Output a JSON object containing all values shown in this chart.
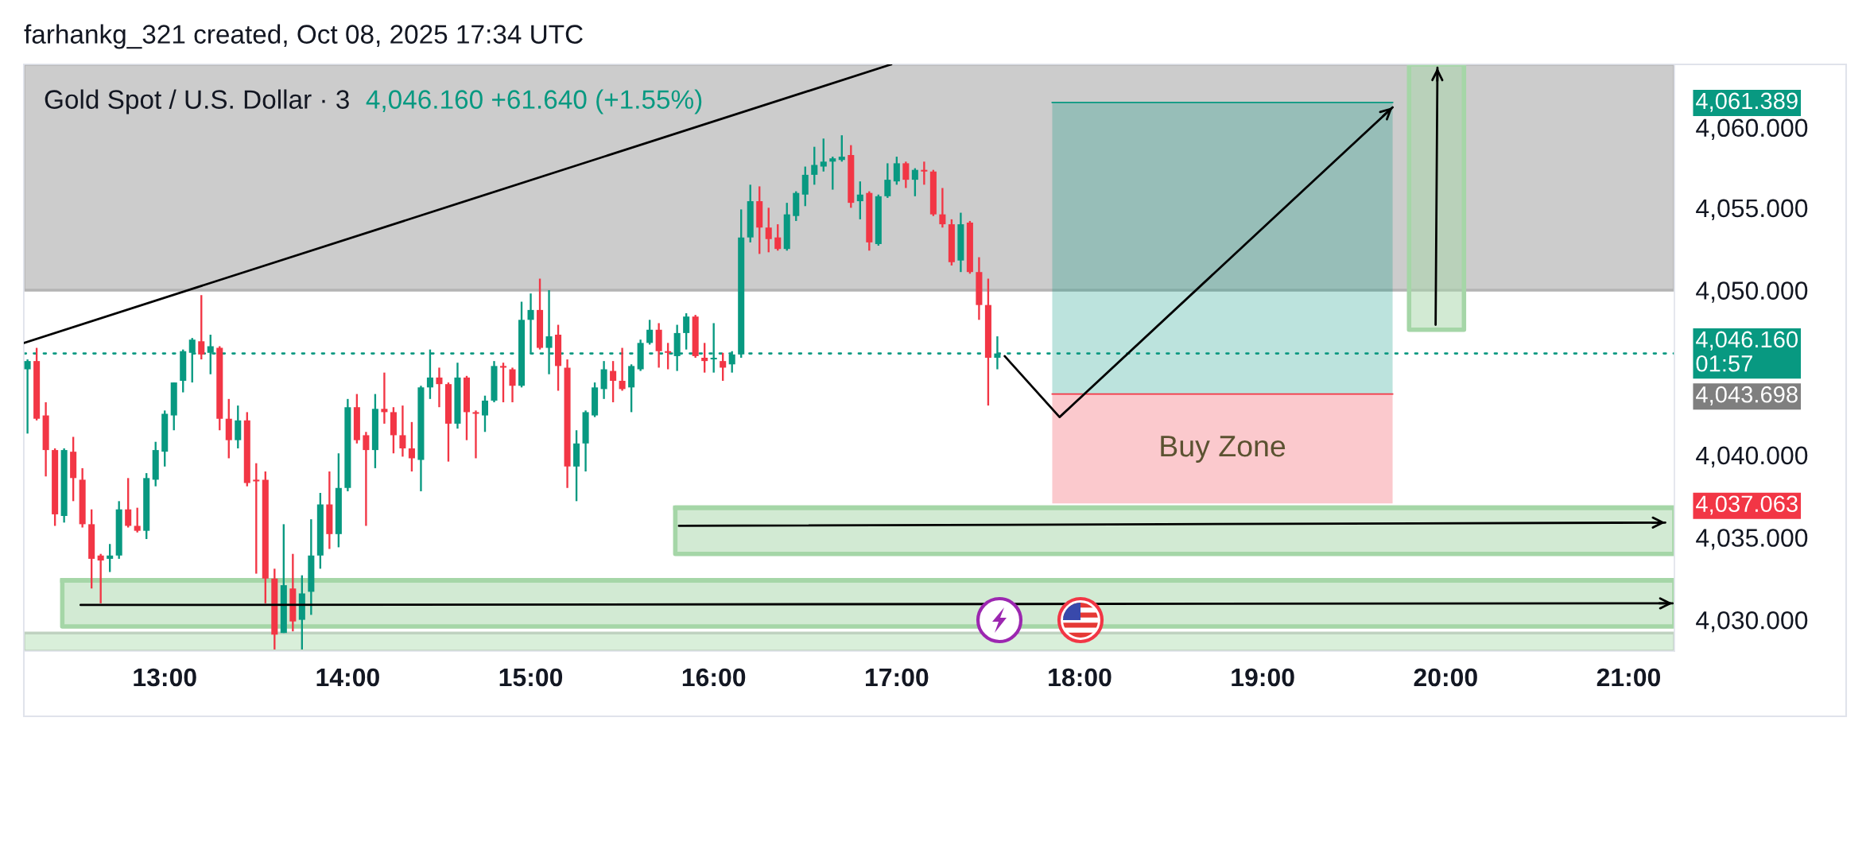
{
  "chart_data": {
    "type": "candlestick",
    "title": "farhankg_321 created, Oct 08, 2025 17:34 UTC",
    "subtitle": "Gold Spot / U.S. Dollar · 3",
    "annotations": [
      "4,046.160 +61.640 (+1.55%)"
    ],
    "x": [
      12.25,
      12.3,
      12.35,
      12.4,
      12.45,
      12.5,
      12.55,
      12.6,
      12.65,
      12.7,
      12.75,
      12.8,
      12.85,
      12.9,
      12.95,
      13,
      13.05,
      13.1,
      13.15,
      13.2,
      13.25,
      13.3,
      13.35,
      13.4,
      13.45,
      13.5,
      13.55,
      13.6,
      13.65,
      13.7,
      13.75,
      13.8,
      13.85,
      13.9,
      13.95,
      14,
      14.05,
      14.1,
      14.15,
      14.2,
      14.25,
      14.3,
      14.35,
      14.4,
      14.45,
      14.5,
      14.55,
      14.6,
      14.65,
      14.7,
      14.75,
      14.8,
      14.85,
      14.9,
      14.95,
      15,
      15.05,
      15.1,
      15.15,
      15.2,
      15.25,
      15.3,
      15.35,
      15.4,
      15.45,
      15.5,
      15.55,
      15.6,
      15.65,
      15.7,
      15.75,
      15.8,
      15.85,
      15.9,
      15.95,
      16,
      16.05,
      16.1,
      16.15,
      16.2,
      16.25,
      16.3,
      16.35,
      16.4,
      16.45,
      16.5,
      16.55,
      16.6,
      16.65,
      16.7,
      16.75,
      16.8,
      16.85,
      16.9,
      16.95,
      17,
      17.05,
      17.1,
      17.15,
      17.2,
      17.25,
      17.3,
      17.35,
      17.4,
      17.45,
      17.5,
      17.55
    ],
    "ohlc": [
      [
        4045.2,
        4045.8,
        4041.3,
        4045.7
      ],
      [
        4045.7,
        4046.5,
        4042.1,
        4042.2
      ],
      [
        4042.4,
        4043.2,
        4038.7,
        4040.3
      ],
      [
        4040.3,
        4040.4,
        4035.7,
        4036.4
      ],
      [
        4036.3,
        4040.4,
        4035.9,
        4040.3
      ],
      [
        4040.2,
        4041.1,
        4037.2,
        4038.6
      ],
      [
        4038.5,
        4039.2,
        4035.6,
        4035.8
      ],
      [
        4035.8,
        4036.7,
        4031.9,
        4033.7
      ],
      [
        4033.9,
        4034.0,
        4031.0,
        4033.6
      ],
      [
        4033.7,
        4034.6,
        4032.9,
        4033.9
      ],
      [
        4033.9,
        4037.2,
        4033.7,
        4036.7
      ],
      [
        4036.7,
        4038.6,
        4035.6,
        4035.7
      ],
      [
        4035.7,
        4036.8,
        4035.3,
        4035.4
      ],
      [
        4035.4,
        4038.9,
        4034.9,
        4038.6
      ],
      [
        4038.5,
        4040.8,
        4038.1,
        4040.3
      ],
      [
        4040.2,
        4042.7,
        4039.3,
        4042.5
      ],
      [
        4042.4,
        4044.4,
        4041.5,
        4044.4
      ],
      [
        4044.5,
        4046.4,
        4043.8,
        4046.3
      ],
      [
        4046.2,
        4047.1,
        4044.4,
        4047.0
      ],
      [
        4046.9,
        4049.7,
        4045.8,
        4046.1
      ],
      [
        4046.2,
        4047.3,
        4044.9,
        4046.6
      ],
      [
        4046.5,
        4046.6,
        4041.5,
        4042.2
      ],
      [
        4042.2,
        4043.4,
        4039.8,
        4040.9
      ],
      [
        4040.9,
        4043.0,
        4040.4,
        4042.1
      ],
      [
        4042.1,
        4042.6,
        4038.1,
        4038.3
      ],
      [
        4038.5,
        4039.5,
        4032.8,
        4038.4
      ],
      [
        4038.5,
        4039.0,
        4031.0,
        4032.5
      ],
      [
        4032.5,
        4033.1,
        4028.2,
        4029.1
      ],
      [
        4029.2,
        4035.8,
        4029.2,
        4032.1
      ],
      [
        4031.9,
        4034.0,
        4029.3,
        4029.9
      ],
      [
        4030.0,
        4032.7,
        4028.2,
        4031.6
      ],
      [
        4031.7,
        4036.1,
        4030.3,
        4033.9
      ],
      [
        4033.9,
        4037.7,
        4033.1,
        4037.0
      ],
      [
        4037.0,
        4039.0,
        4034.3,
        4035.2
      ],
      [
        4035.2,
        4040.1,
        4034.4,
        4038.0
      ],
      [
        4038.0,
        4043.4,
        4037.8,
        4042.9
      ],
      [
        4042.9,
        4043.7,
        4040.7,
        4040.9
      ],
      [
        4041.2,
        4041.4,
        4035.7,
        4040.3
      ],
      [
        4040.3,
        4043.7,
        4039.2,
        4042.8
      ],
      [
        4042.8,
        4045.0,
        4041.9,
        4042.6
      ],
      [
        4042.6,
        4042.9,
        4040.1,
        4041.2
      ],
      [
        4041.2,
        4043.0,
        4039.9,
        4040.4
      ],
      [
        4040.4,
        4042.0,
        4039.0,
        4039.8
      ],
      [
        4039.7,
        4044.2,
        4037.8,
        4044.1
      ],
      [
        4044.1,
        4046.4,
        4043.4,
        4044.7
      ],
      [
        4044.7,
        4045.3,
        4042.9,
        4044.3
      ],
      [
        4044.3,
        4044.4,
        4039.6,
        4041.9
      ],
      [
        4041.9,
        4045.6,
        4041.6,
        4044.7
      ],
      [
        4044.7,
        4044.8,
        4040.9,
        4042.6
      ],
      [
        4042.6,
        4042.7,
        4039.8,
        4042.5
      ],
      [
        4042.4,
        4043.6,
        4041.4,
        4043.3
      ],
      [
        4043.3,
        4045.7,
        4043.2,
        4045.4
      ],
      [
        4045.4,
        4045.6,
        4043.2,
        4045.3
      ],
      [
        4045.2,
        4045.3,
        4043.2,
        4044.2
      ],
      [
        4044.2,
        4049.3,
        4044.1,
        4048.2
      ],
      [
        4048.2,
        4049.8,
        4046.2,
        4048.8
      ],
      [
        4048.8,
        4050.7,
        4046.4,
        4046.5
      ],
      [
        4046.5,
        4050.0,
        4044.9,
        4047.2
      ],
      [
        4047.3,
        4047.9,
        4043.9,
        4045.4
      ],
      [
        4045.3,
        4045.8,
        4038.0,
        4039.3
      ],
      [
        4039.3,
        4041.5,
        4037.2,
        4040.7
      ],
      [
        4040.7,
        4042.7,
        4039.0,
        4042.6
      ],
      [
        4042.4,
        4044.4,
        4042.3,
        4044.1
      ],
      [
        4044.0,
        4045.7,
        4043.4,
        4045.2
      ],
      [
        4045.1,
        4045.7,
        4043.2,
        4044.5
      ],
      [
        4044.5,
        4046.5,
        4043.9,
        4044.0
      ],
      [
        4044.1,
        4045.5,
        4042.6,
        4045.4
      ],
      [
        4045.2,
        4047.0,
        4045.1,
        4046.8
      ],
      [
        4046.8,
        4048.2,
        4046.7,
        4047.6
      ],
      [
        4047.6,
        4048.0,
        4045.3,
        4046.3
      ],
      [
        4046.3,
        4046.8,
        4045.2,
        4046.2
      ],
      [
        4046.0,
        4047.9,
        4045.1,
        4047.4
      ],
      [
        4047.4,
        4048.6,
        4046.4,
        4048.4
      ],
      [
        4048.4,
        4048.5,
        4045.9,
        4046.0
      ],
      [
        4045.9,
        4046.8,
        4045.0,
        4045.7
      ],
      [
        4045.8,
        4048.0,
        4045.0,
        4045.9
      ],
      [
        4045.7,
        4046.2,
        4044.5,
        4045.3
      ],
      [
        4045.5,
        4046.3,
        4045.0,
        4046.1
      ],
      [
        4046.1,
        4054.9,
        4045.9,
        4053.2
      ],
      [
        4053.2,
        4056.4,
        4052.9,
        4055.4
      ],
      [
        4055.4,
        4056.3,
        4052.2,
        4053.8
      ],
      [
        4053.8,
        4055.0,
        4052.3,
        4053.1
      ],
      [
        4053.2,
        4054.0,
        4052.4,
        4052.5
      ],
      [
        4052.5,
        4055.3,
        4052.4,
        4054.6
      ],
      [
        4054.5,
        4056.0,
        4054.2,
        4055.9
      ],
      [
        4055.8,
        4057.5,
        4055.1,
        4057.0
      ],
      [
        4057.0,
        4058.7,
        4056.4,
        4057.6
      ],
      [
        4057.5,
        4059.2,
        4057.2,
        4057.8
      ],
      [
        4057.8,
        4058.1,
        4056.1,
        4058.0
      ],
      [
        4057.9,
        4059.4,
        4057.8,
        4058.1
      ],
      [
        4058.2,
        4058.8,
        4055.0,
        4055.3
      ],
      [
        4055.4,
        4056.6,
        4054.3,
        4055.8
      ],
      [
        4055.9,
        4056.0,
        4052.4,
        4052.9
      ],
      [
        4052.8,
        4055.8,
        4052.7,
        4055.7
      ],
      [
        4055.7,
        4057.7,
        4055.6,
        4056.7
      ],
      [
        4056.6,
        4058.1,
        4056.4,
        4057.7
      ],
      [
        4057.7,
        4057.8,
        4056.2,
        4056.7
      ],
      [
        4056.7,
        4057.4,
        4055.7,
        4057.3
      ],
      [
        4057.3,
        4057.8,
        4056.4,
        4057.2
      ],
      [
        4057.2,
        4057.3,
        4054.5,
        4054.6
      ],
      [
        4054.6,
        4056.2,
        4053.8,
        4054.0
      ],
      [
        4054.0,
        4054.3,
        4051.5,
        4051.7
      ],
      [
        4051.8,
        4054.7,
        4051.1,
        4054.0
      ],
      [
        4054.1,
        4054.2,
        4051.0,
        4051.1
      ],
      [
        4051.1,
        4052.0,
        4048.2,
        4049.1
      ],
      [
        4049.1,
        4050.7,
        4043.0,
        4045.9
      ],
      [
        4045.9,
        4047.2,
        4045.2,
        4046.16
      ]
    ],
    "colors": [
      "#089981",
      "#f23645",
      "#f23645",
      "#f23645",
      "#089981",
      "#f23645",
      "#f23645",
      "#f23645",
      "#f23645",
      "#089981",
      "#089981",
      "#f23645",
      "#f23645",
      "#089981",
      "#089981",
      "#089981",
      "#089981",
      "#089981",
      "#089981",
      "#f23645",
      "#089981",
      "#f23645",
      "#f23645",
      "#089981",
      "#f23645",
      "#f23645",
      "#f23645",
      "#f23645",
      "#089981",
      "#f23645",
      "#089981",
      "#089981",
      "#089981",
      "#f23645",
      "#089981",
      "#089981",
      "#f23645",
      "#f23645",
      "#089981",
      "#f23645",
      "#f23645",
      "#f23645",
      "#f23645",
      "#089981",
      "#089981",
      "#f23645",
      "#f23645",
      "#089981",
      "#f23645",
      "#f23645",
      "#089981",
      "#089981",
      "#f23645",
      "#f23645",
      "#089981",
      "#089981",
      "#f23645",
      "#089981",
      "#f23645",
      "#f23645",
      "#089981",
      "#089981",
      "#089981",
      "#089981",
      "#f23645",
      "#f23645",
      "#089981",
      "#089981",
      "#089981",
      "#f23645",
      "#f23645",
      "#089981",
      "#089981",
      "#f23645",
      "#f23645",
      "#089981",
      "#f23645",
      "#089981",
      "#089981",
      "#089981",
      "#f23645",
      "#f23645",
      "#f23645",
      "#089981",
      "#089981",
      "#089981",
      "#089981",
      "#089981",
      "#089981",
      "#089981",
      "#f23645",
      "#089981",
      "#f23645",
      "#089981",
      "#089981",
      "#089981",
      "#f23645",
      "#089981",
      "#f23645",
      "#f23645",
      "#f23645",
      "#f23645",
      "#089981",
      "#f23645",
      "#f23645",
      "#f23645",
      "#089981"
    ],
    "series": [
      {
        "type": "line",
        "x": [
          12.23,
          16.97
        ],
        "values": [
          4046.8,
          4063.7
        ],
        "color": "#000000"
      },
      {
        "type": "line",
        "x": [
          17.59,
          17.89,
          19.71
        ],
        "values": [
          4046.0,
          4042.3,
          4061.1
        ],
        "color": "#000000"
      },
      {
        "type": "line",
        "x": [
          17.85,
          19.71
        ],
        "values": [
          4061.389,
          4061.389
        ],
        "lower": [
          4043.698,
          4043.698
        ],
        "upper": [
          4061.389,
          4061.389
        ],
        "color": "#089981"
      },
      {
        "type": "line",
        "name": "Buy Zone",
        "x": [
          17.85,
          19.71
        ],
        "values": [
          4043.698,
          4043.698
        ],
        "lower": [
          4037.063,
          4037.063
        ],
        "upper": [
          4043.698,
          4043.698
        ],
        "color": "#f23645"
      },
      {
        "type": "line",
        "x": [
          15.79,
          21.25
        ],
        "values": [
          4036.8,
          4036.8
        ],
        "lower": [
          4034.0,
          4034.0
        ],
        "upper": [
          4036.8,
          4036.8
        ],
        "color": "#a5d6a7",
        "line_style": "solid"
      },
      {
        "type": "line",
        "x": [
          12.44,
          21.25
        ],
        "values": [
          4032.4,
          4032.4
        ],
        "lower": [
          4029.6,
          4029.6
        ],
        "upper": [
          4032.4,
          4032.4
        ],
        "color": "#a5d6a7",
        "line_style": "solid"
      },
      {
        "type": "line",
        "x": [
          19.8,
          20.1
        ],
        "values": [
          null,
          null
        ],
        "lower": [
          4047.6,
          4047.6
        ],
        "upper": [
          4063.7,
          4063.7
        ],
        "color": "#a5d6a7",
        "line_style": "solid"
      },
      {
        "type": "line",
        "x": [
          15.81,
          21.2
        ],
        "values": [
          4035.7,
          4035.9
        ],
        "color": "#000000"
      },
      {
        "type": "line",
        "x": [
          12.54,
          21.24
        ],
        "values": [
          4030.9,
          4031.0
        ],
        "color": "#000000"
      },
      {
        "type": "line",
        "x": [
          19.945,
          19.955
        ],
        "values": [
          4047.9,
          4063.5
        ],
        "color": "#000000"
      }
    ],
    "bands": [
      {
        "axis": "y",
        "from": 4050,
        "to": 4063.7,
        "color": "#cccccc"
      },
      {
        "axis": "y",
        "from": 4028.1,
        "to": 4029.2,
        "color": "#d9efda"
      }
    ],
    "ref_lines": [
      {
        "axis": "y",
        "value": 4046.16,
        "label": "4,046.160\n01:57",
        "color": "#089981",
        "line_style": "dotted"
      }
    ],
    "xlim": [
      12.23,
      21.25
    ],
    "xticks": [
      {
        "value": 13,
        "label": "13:00"
      },
      {
        "value": 14,
        "label": "14:00"
      },
      {
        "value": 15,
        "label": "15:00"
      },
      {
        "value": 16,
        "label": "16:00"
      },
      {
        "value": 17,
        "label": "17:00"
      },
      {
        "value": 18,
        "label": "18:00"
      },
      {
        "value": 19,
        "label": "19:00"
      },
      {
        "value": 20,
        "label": "20:00"
      },
      {
        "value": 21,
        "label": "21:00"
      }
    ],
    "ylim": [
      4028.1,
      4063.7
    ],
    "yticks": [
      {
        "value": 4030,
        "label": "4,030.000"
      },
      {
        "value": 4035,
        "label": "4,035.000"
      },
      {
        "value": 4037.063,
        "label": "4,037.063"
      },
      {
        "value": 4040,
        "label": "4,040.000"
      },
      {
        "value": 4043.698,
        "label": "4,043.698"
      },
      {
        "value": 4050,
        "label": "4,050.000"
      },
      {
        "value": 4055,
        "label": "4,055.000"
      },
      {
        "value": 4060,
        "label": "4,060.000"
      },
      {
        "value": 4061.389,
        "label": "4,061.389"
      }
    ]
  }
}
